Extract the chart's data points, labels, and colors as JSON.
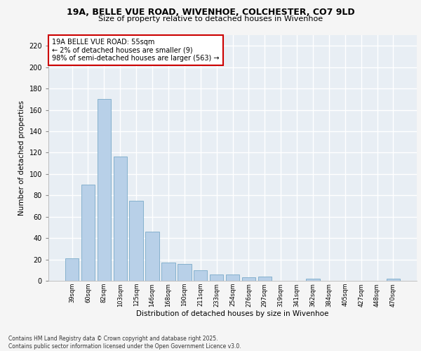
{
  "title_line1": "19A, BELLE VUE ROAD, WIVENHOE, COLCHESTER, CO7 9LD",
  "title_line2": "Size of property relative to detached houses in Wivenhoe",
  "xlabel": "Distribution of detached houses by size in Wivenhoe",
  "ylabel": "Number of detached properties",
  "categories": [
    "39sqm",
    "60sqm",
    "82sqm",
    "103sqm",
    "125sqm",
    "146sqm",
    "168sqm",
    "190sqm",
    "211sqm",
    "233sqm",
    "254sqm",
    "276sqm",
    "297sqm",
    "319sqm",
    "341sqm",
    "362sqm",
    "384sqm",
    "405sqm",
    "427sqm",
    "448sqm",
    "470sqm"
  ],
  "values": [
    21,
    90,
    170,
    116,
    75,
    46,
    17,
    16,
    10,
    6,
    6,
    3,
    4,
    0,
    0,
    2,
    0,
    0,
    0,
    0,
    2
  ],
  "bar_color": "#b8d0e8",
  "bar_edge_color": "#7aaac8",
  "annotation_text": "19A BELLE VUE ROAD: 55sqm\n← 2% of detached houses are smaller (9)\n98% of semi-detached houses are larger (563) →",
  "annotation_box_color": "#ffffff",
  "annotation_box_edge_color": "#cc0000",
  "background_color": "#e8eef4",
  "grid_color": "#ffffff",
  "footer_text": "Contains HM Land Registry data © Crown copyright and database right 2025.\nContains public sector information licensed under the Open Government Licence v3.0.",
  "ylim": [
    0,
    230
  ],
  "yticks": [
    0,
    20,
    40,
    60,
    80,
    100,
    120,
    140,
    160,
    180,
    200,
    220
  ],
  "fig_bg": "#f5f5f5"
}
